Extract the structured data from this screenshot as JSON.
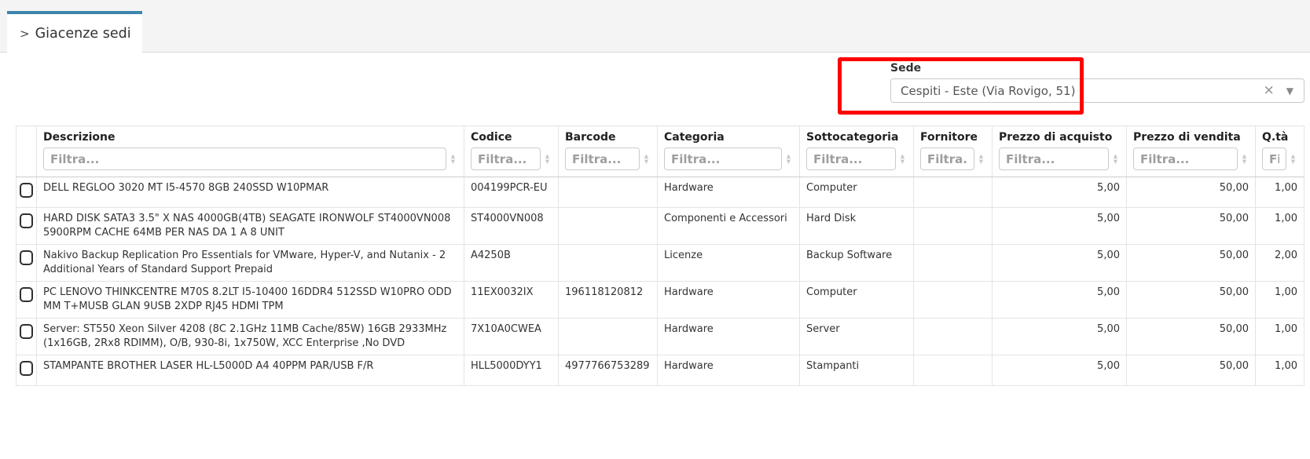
{
  "tab": {
    "chevron": ">",
    "label": "Giacenze sedi"
  },
  "filter_panel": {
    "sede_label": "Sede",
    "sede_value": "Cespiti - Este (Via Rovigo, 51)",
    "clear_icon": "×",
    "caret_icon": "▼"
  },
  "table": {
    "sort_icons": {
      "asc": "▲",
      "desc": "▼"
    },
    "columns": [
      {
        "key": "descrizione",
        "label": "Descrizione",
        "placeholder": "Filtra..."
      },
      {
        "key": "codice",
        "label": "Codice",
        "placeholder": "Filtra..."
      },
      {
        "key": "barcode",
        "label": "Barcode",
        "placeholder": "Filtra..."
      },
      {
        "key": "categoria",
        "label": "Categoria",
        "placeholder": "Filtra..."
      },
      {
        "key": "sottocategoria",
        "label": "Sottocategoria",
        "placeholder": "Filtra..."
      },
      {
        "key": "fornitore",
        "label": "Fornitore",
        "placeholder": "Filtra..."
      },
      {
        "key": "prezzo_acquisto",
        "label": "Prezzo di acquisto",
        "placeholder": "Filtra..."
      },
      {
        "key": "prezzo_vendita",
        "label": "Prezzo di vendita",
        "placeholder": "Filtra..."
      },
      {
        "key": "qta",
        "label": "Q.tà",
        "placeholder": "Filtra..."
      }
    ],
    "rows": [
      {
        "descrizione": "DELL REGLOO 3020 MT I5-4570 8GB 240SSD W10PMAR",
        "codice": "004199PCR-EU",
        "barcode": "",
        "categoria": "Hardware",
        "sottocategoria": "Computer",
        "fornitore": "",
        "prezzo_acquisto": "5,00",
        "prezzo_vendita": "50,00",
        "qta": "1,00"
      },
      {
        "descrizione": "HARD DISK SATA3 3.5\" X NAS 4000GB(4TB) SEAGATE IRONWOLF ST4000VN008 5900RPM CACHE 64MB PER NAS DA 1 A 8 UNIT",
        "codice": "ST4000VN008",
        "barcode": "",
        "categoria": "Componenti e Accessori",
        "sottocategoria": "Hard Disk",
        "fornitore": "",
        "prezzo_acquisto": "5,00",
        "prezzo_vendita": "50,00",
        "qta": "1,00"
      },
      {
        "descrizione": "Nakivo Backup Replication Pro Essentials for VMware, Hyper-V, and Nutanix - 2 Additional Years of Standard Support Prepaid",
        "codice": "A4250B",
        "barcode": "",
        "categoria": "Licenze",
        "sottocategoria": "Backup Software",
        "fornitore": "",
        "prezzo_acquisto": "5,00",
        "prezzo_vendita": "50,00",
        "qta": "2,00"
      },
      {
        "descrizione": "PC LENOVO THINKCENTRE M70S 8.2LT I5-10400 16DDR4 512SSD W10PRO ODD MM T+MUSB GLAN 9USB 2XDP RJ45 HDMI TPM",
        "codice": "11EX0032IX",
        "barcode": "196118120812",
        "categoria": "Hardware",
        "sottocategoria": "Computer",
        "fornitore": "",
        "prezzo_acquisto": "5,00",
        "prezzo_vendita": "50,00",
        "qta": "1,00"
      },
      {
        "descrizione": "Server: ST550 Xeon Silver 4208 (8C 2.1GHz 11MB Cache/85W) 16GB 2933MHz (1x16GB, 2Rx8 RDIMM), O/B, 930-8i, 1x750W, XCC Enterprise ,No DVD",
        "codice": "7X10A0CWEA",
        "barcode": "",
        "categoria": "Hardware",
        "sottocategoria": "Server",
        "fornitore": "",
        "prezzo_acquisto": "5,00",
        "prezzo_vendita": "50,00",
        "qta": "1,00"
      },
      {
        "descrizione": "STAMPANTE BROTHER LASER HL-L5000D A4 40PPM PAR/USB F/R",
        "codice": "HLL5000DYY1",
        "barcode": "4977766753289",
        "categoria": "Hardware",
        "sottocategoria": "Stampanti",
        "fornitore": "",
        "prezzo_acquisto": "5,00",
        "prezzo_vendita": "50,00",
        "qta": "1,00"
      }
    ]
  },
  "colors": {
    "accent_blue": "#3c85ad",
    "annotation_red": "#fe0000"
  }
}
